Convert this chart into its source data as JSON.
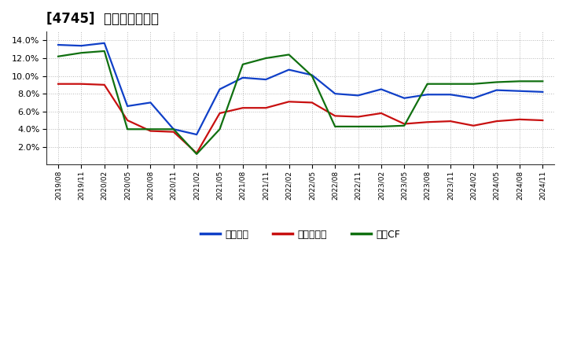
{
  "title": "[4745]  マージンの推移",
  "x_labels": [
    "2019/08",
    "2019/11",
    "2020/02",
    "2020/05",
    "2020/08",
    "2020/11",
    "2021/02",
    "2021/05",
    "2021/08",
    "2021/11",
    "2022/02",
    "2022/05",
    "2022/08",
    "2022/11",
    "2023/02",
    "2023/05",
    "2023/08",
    "2023/11",
    "2024/02",
    "2024/05",
    "2024/08",
    "2024/11"
  ],
  "series": {
    "経常利益": {
      "color": "#1040c8",
      "values": [
        13.5,
        13.4,
        13.7,
        6.6,
        7.0,
        4.0,
        3.4,
        8.5,
        9.8,
        9.6,
        10.7,
        10.1,
        8.0,
        7.8,
        8.5,
        7.5,
        7.9,
        7.9,
        7.5,
        8.4,
        8.3,
        8.2
      ]
    },
    "当期純利益": {
      "color": "#c81010",
      "values": [
        9.1,
        9.1,
        9.0,
        5.0,
        3.8,
        3.7,
        1.3,
        5.8,
        6.4,
        6.4,
        7.1,
        7.0,
        5.5,
        5.4,
        5.8,
        4.6,
        4.8,
        4.9,
        4.4,
        4.9,
        5.1,
        5.0
      ]
    },
    "営業CF": {
      "color": "#107010",
      "values": [
        12.2,
        12.6,
        12.8,
        4.0,
        4.0,
        4.0,
        1.2,
        4.0,
        11.3,
        12.0,
        12.4,
        10.0,
        4.3,
        4.3,
        4.3,
        4.4,
        9.1,
        9.1,
        9.1,
        9.3,
        9.4,
        9.4
      ]
    }
  },
  "ylim": [
    0,
    15.0
  ],
  "yticks": [
    2.0,
    4.0,
    6.0,
    8.0,
    10.0,
    12.0,
    14.0
  ],
  "background_color": "#ffffff",
  "grid_color": "#888888",
  "legend_labels": [
    "経常利益",
    "当期純利益",
    "営業CF"
  ],
  "title_fontsize": 12,
  "title_bold": true
}
